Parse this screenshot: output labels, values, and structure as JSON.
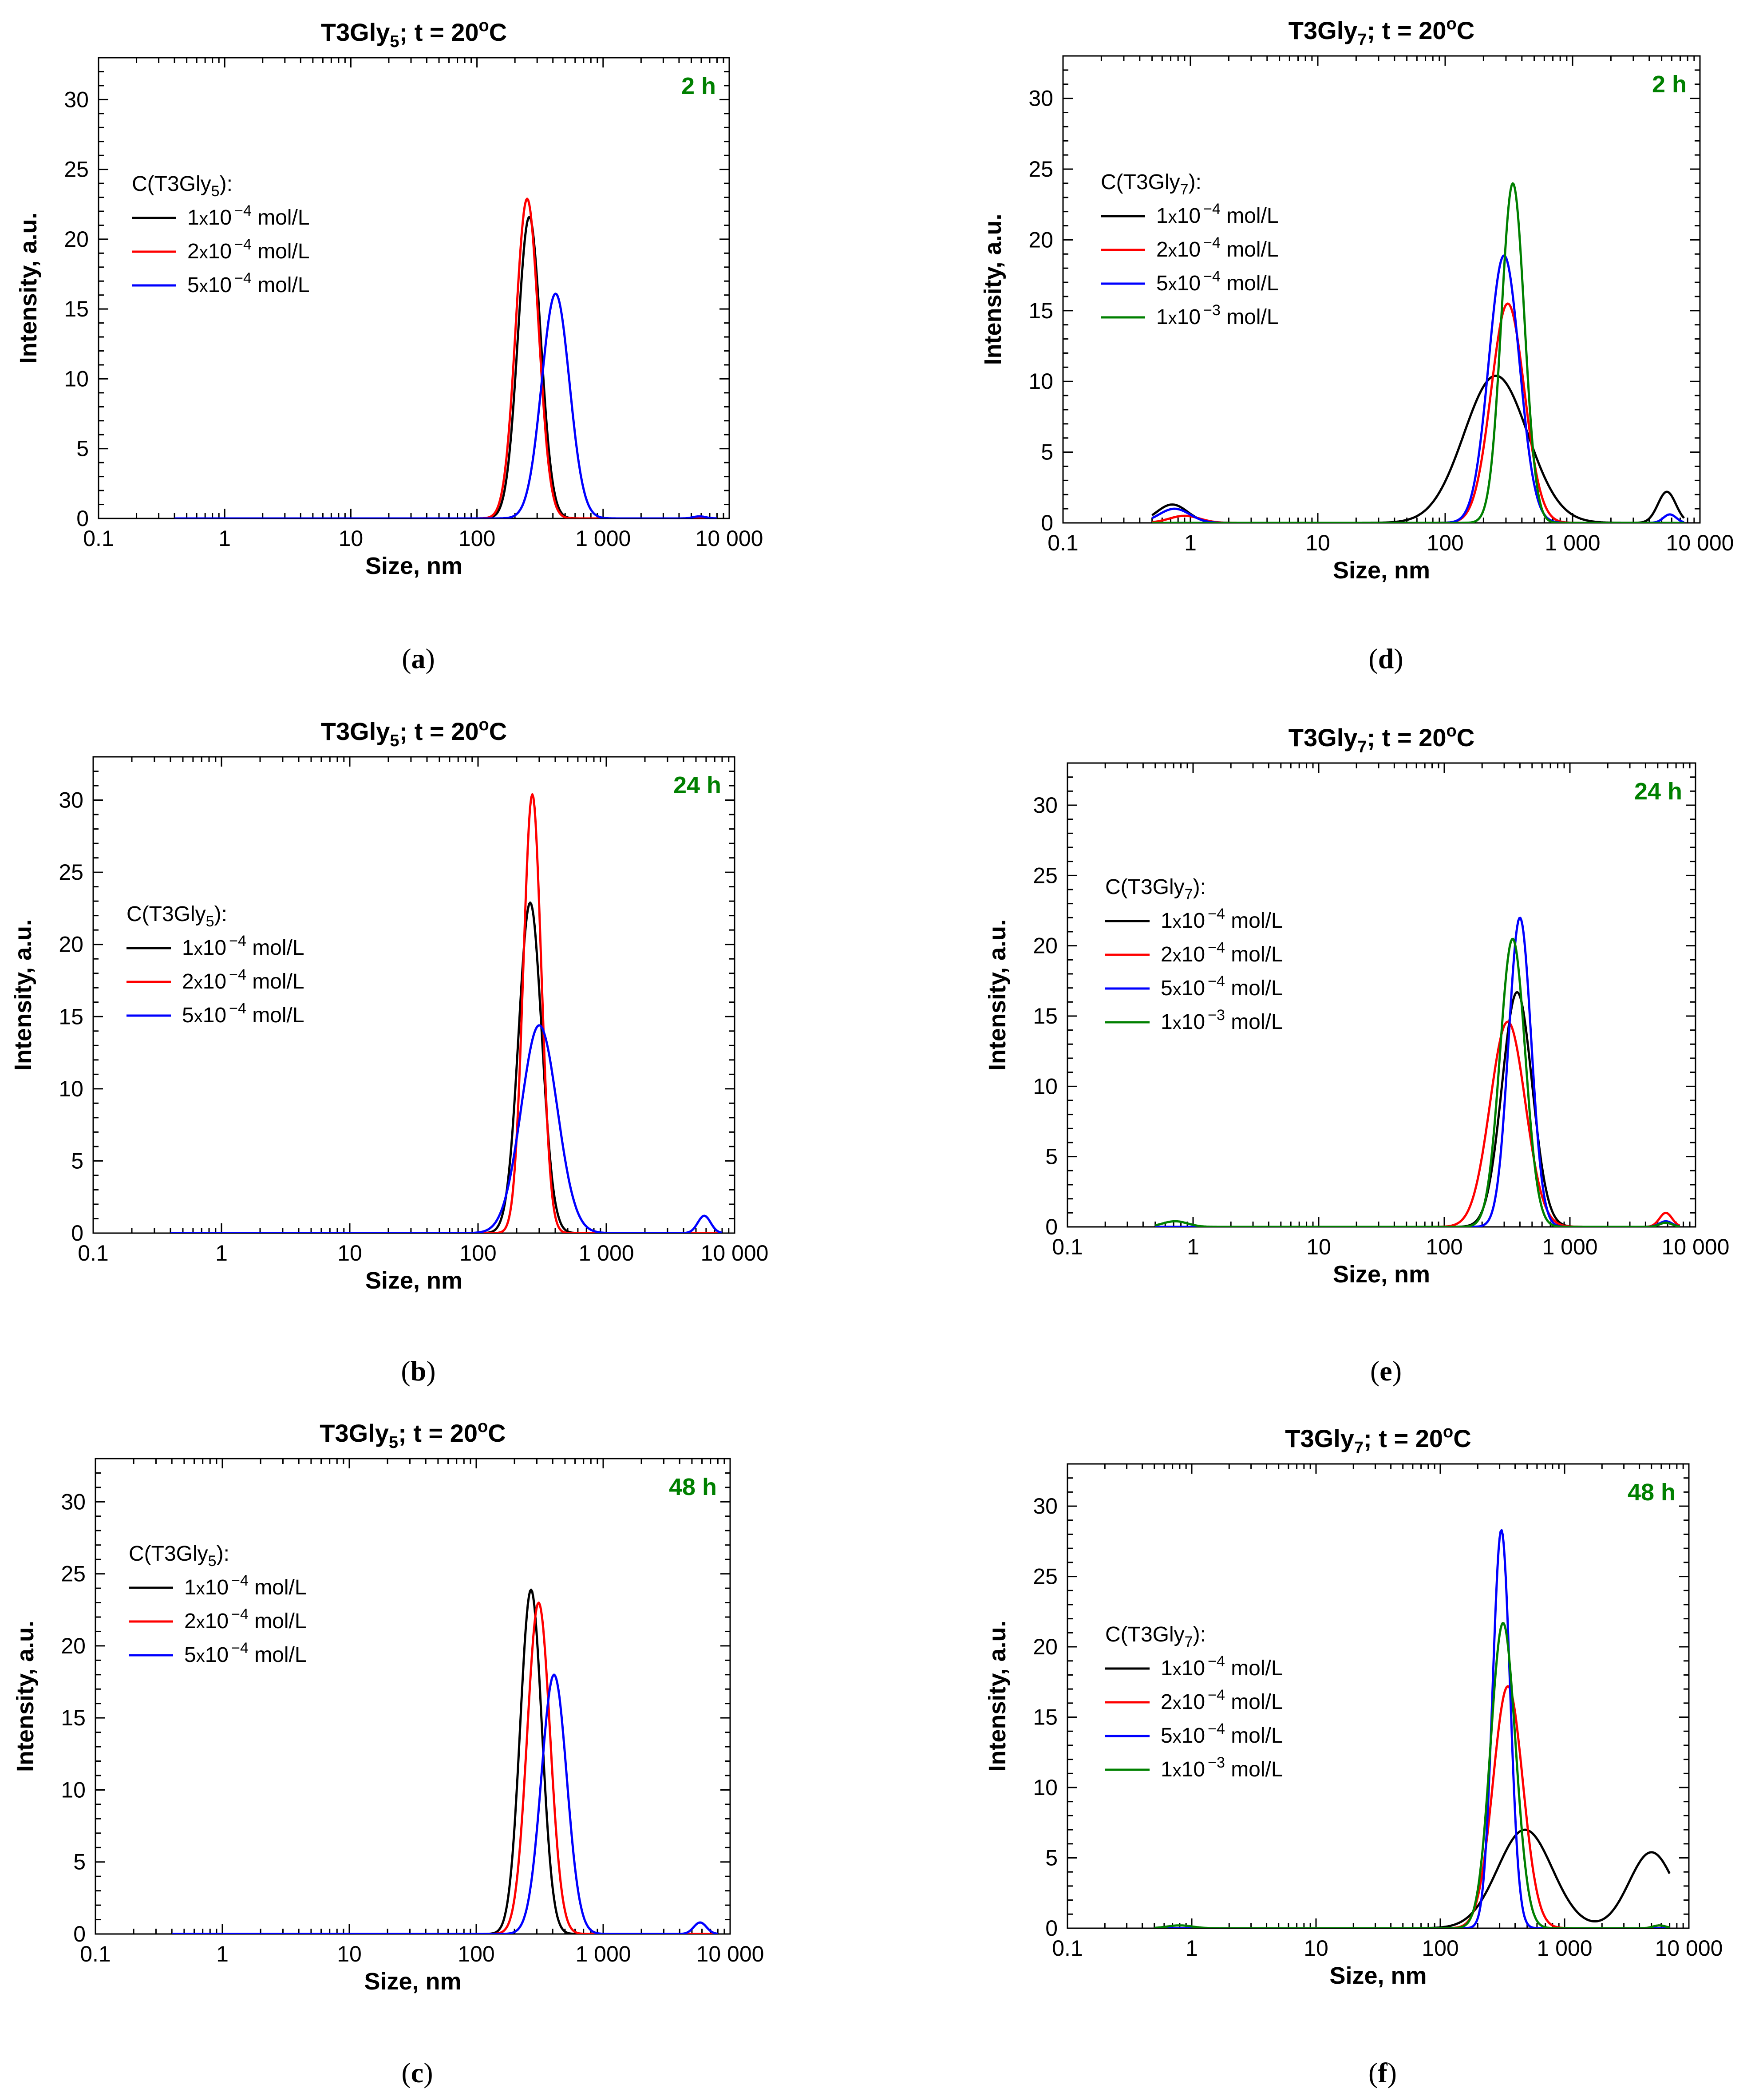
{
  "chart_data": [
    {
      "panel": "a",
      "caption": "(a)",
      "type": "line",
      "title_main": "T3Gly",
      "title_sub": "5",
      "title_rest": "; t = 20",
      "title_deg": "o",
      "title_unit": "C",
      "time_label": "2 h",
      "xlabel": "Size, nm",
      "ylabel": "Intensity, a.u.",
      "xscale": "log",
      "xlim": [
        0.1,
        10000
      ],
      "ylim": [
        0,
        33
      ],
      "xticks": [
        {
          "v": 0.1,
          "label": "0.1"
        },
        {
          "v": 1,
          "label": "1"
        },
        {
          "v": 10,
          "label": "10"
        },
        {
          "v": 100,
          "label": "100"
        },
        {
          "v": 1000,
          "label": "1 000"
        },
        {
          "v": 10000,
          "label": "10 000"
        }
      ],
      "yticks": [
        {
          "v": 0,
          "label": "0"
        },
        {
          "v": 5,
          "label": "5"
        },
        {
          "v": 10,
          "label": "10"
        },
        {
          "v": 15,
          "label": "15"
        },
        {
          "v": 20,
          "label": "20"
        },
        {
          "v": 25,
          "label": "25"
        },
        {
          "v": 30,
          "label": "30"
        }
      ],
      "legend_title": {
        "pre": "C(T3Gly",
        "sub": "5",
        "post": "):"
      },
      "series": [
        {
          "name": "1x10-4 mol/L",
          "color": "#000000",
          "xstart": 0.4,
          "xend": 8000,
          "peaks": [
            {
              "c": 260,
              "a": 21.6,
              "w": 0.09
            }
          ]
        },
        {
          "name": "2x10-4 mol/L",
          "color": "#ff0000",
          "xstart": 0.4,
          "xend": 8000,
          "peaks": [
            {
              "c": 250,
              "a": 22.9,
              "w": 0.09
            }
          ]
        },
        {
          "name": "5x10-4 mol/L",
          "color": "#0000ff",
          "xstart": 0.4,
          "xend": 8000,
          "peaks": [
            {
              "c": 420,
              "a": 16.1,
              "w": 0.11
            },
            {
              "c": 5800,
              "a": 0.15,
              "w": 0.05
            }
          ]
        }
      ]
    },
    {
      "panel": "b",
      "caption": "(b)",
      "type": "line",
      "title_main": "T3Gly",
      "title_sub": "5",
      "title_rest": "; t = 20",
      "title_deg": "o",
      "title_unit": "C",
      "time_label": "24 h",
      "xlabel": "Size, nm",
      "ylabel": "Intensity, a.u.",
      "xscale": "log",
      "xlim": [
        0.1,
        10000
      ],
      "ylim": [
        0,
        33
      ],
      "xticks": [
        {
          "v": 0.1,
          "label": "0.1"
        },
        {
          "v": 1,
          "label": "1"
        },
        {
          "v": 10,
          "label": "10"
        },
        {
          "v": 100,
          "label": "100"
        },
        {
          "v": 1000,
          "label": "1 000"
        },
        {
          "v": 10000,
          "label": "10 000"
        }
      ],
      "yticks": [
        {
          "v": 0,
          "label": "0"
        },
        {
          "v": 5,
          "label": "5"
        },
        {
          "v": 10,
          "label": "10"
        },
        {
          "v": 15,
          "label": "15"
        },
        {
          "v": 20,
          "label": "20"
        },
        {
          "v": 25,
          "label": "25"
        },
        {
          "v": 30,
          "label": "30"
        }
      ],
      "legend_title": {
        "pre": "C(T3Gly",
        "sub": "5",
        "post": "):"
      },
      "series": [
        {
          "name": "1x10-4 mol/L",
          "color": "#000000",
          "xstart": 0.4,
          "xend": 8000,
          "peaks": [
            {
              "c": 255,
              "a": 22.9,
              "w": 0.09
            }
          ]
        },
        {
          "name": "2x10-4 mol/L",
          "color": "#ff0000",
          "xstart": 0.4,
          "xend": 8000,
          "peaks": [
            {
              "c": 265,
              "a": 30.4,
              "w": 0.07
            }
          ]
        },
        {
          "name": "5x10-4 mol/L",
          "color": "#0000ff",
          "xstart": 0.4,
          "xend": 8000,
          "peaks": [
            {
              "c": 300,
              "a": 14.4,
              "w": 0.14
            },
            {
              "c": 5800,
              "a": 1.2,
              "w": 0.05
            }
          ]
        }
      ]
    },
    {
      "panel": "c",
      "caption": "(c)",
      "type": "line",
      "title_main": "T3Gly",
      "title_sub": "5",
      "title_rest": "; t = 20",
      "title_deg": "o",
      "title_unit": "C",
      "time_label": "48 h",
      "xlabel": "Size, nm",
      "ylabel": "Intensity, a.u.",
      "xscale": "log",
      "xlim": [
        0.1,
        10000
      ],
      "ylim": [
        0,
        33
      ],
      "xticks": [
        {
          "v": 0.1,
          "label": "0.1"
        },
        {
          "v": 1,
          "label": "1"
        },
        {
          "v": 10,
          "label": "10"
        },
        {
          "v": 100,
          "label": "100"
        },
        {
          "v": 1000,
          "label": "1 000"
        },
        {
          "v": 10000,
          "label": "10 000"
        }
      ],
      "yticks": [
        {
          "v": 0,
          "label": "0"
        },
        {
          "v": 5,
          "label": "5"
        },
        {
          "v": 10,
          "label": "10"
        },
        {
          "v": 15,
          "label": "15"
        },
        {
          "v": 20,
          "label": "20"
        },
        {
          "v": 25,
          "label": "25"
        },
        {
          "v": 30,
          "label": "30"
        }
      ],
      "legend_title": {
        "pre": "C(T3Gly",
        "sub": "5",
        "post": "):"
      },
      "series": [
        {
          "name": "1x10-4 mol/L",
          "color": "#000000",
          "xstart": 0.4,
          "xend": 8000,
          "peaks": [
            {
              "c": 270,
              "a": 23.9,
              "w": 0.085
            }
          ]
        },
        {
          "name": "2x10-4 mol/L",
          "color": "#ff0000",
          "xstart": 0.4,
          "xend": 8000,
          "peaks": [
            {
              "c": 310,
              "a": 23.0,
              "w": 0.09
            }
          ]
        },
        {
          "name": "5x10-4 mol/L",
          "color": "#0000ff",
          "xstart": 0.4,
          "xend": 8000,
          "peaks": [
            {
              "c": 410,
              "a": 18.0,
              "w": 0.1
            },
            {
              "c": 5800,
              "a": 0.8,
              "w": 0.05
            }
          ]
        }
      ]
    },
    {
      "panel": "d",
      "caption": "(d)",
      "type": "line",
      "title_main": "T3Gly",
      "title_sub": "7",
      "title_rest": "; t = 20",
      "title_deg": "o",
      "title_unit": "C",
      "time_label": "2 h",
      "xlabel": "Size, nm",
      "ylabel": "Intensity, a.u.",
      "xscale": "log",
      "xlim": [
        0.1,
        10000
      ],
      "ylim": [
        0,
        33
      ],
      "xticks": [
        {
          "v": 0.1,
          "label": "0.1"
        },
        {
          "v": 1,
          "label": "1"
        },
        {
          "v": 10,
          "label": "10"
        },
        {
          "v": 100,
          "label": "100"
        },
        {
          "v": 1000,
          "label": "1 000"
        },
        {
          "v": 10000,
          "label": "10 000"
        }
      ],
      "yticks": [
        {
          "v": 0,
          "label": "0"
        },
        {
          "v": 5,
          "label": "5"
        },
        {
          "v": 10,
          "label": "10"
        },
        {
          "v": 15,
          "label": "15"
        },
        {
          "v": 20,
          "label": "20"
        },
        {
          "v": 25,
          "label": "25"
        },
        {
          "v": 30,
          "label": "30"
        }
      ],
      "legend_title": {
        "pre": "C(T3Gly",
        "sub": "7",
        "post": "):"
      },
      "series": [
        {
          "name": "1x10-4 mol/L",
          "color": "#000000",
          "xstart": 0.5,
          "xend": 7500,
          "peaks": [
            {
              "c": 0.72,
              "a": 1.3,
              "w": 0.12
            },
            {
              "c": 250,
              "a": 10.4,
              "w": 0.25
            },
            {
              "c": 5500,
              "a": 2.2,
              "w": 0.07
            }
          ]
        },
        {
          "name": "2x10-4 mol/L",
          "color": "#ff0000",
          "xstart": 0.5,
          "xend": 7500,
          "peaks": [
            {
              "c": 0.9,
              "a": 0.5,
              "w": 0.12
            },
            {
              "c": 310,
              "a": 15.5,
              "w": 0.13
            }
          ]
        },
        {
          "name": "5x10-4 mol/L",
          "color": "#0000ff",
          "xstart": 0.5,
          "xend": 7500,
          "peaks": [
            {
              "c": 0.75,
              "a": 1.0,
              "w": 0.12
            },
            {
              "c": 290,
              "a": 18.9,
              "w": 0.12
            },
            {
              "c": 5800,
              "a": 0.6,
              "w": 0.05
            }
          ]
        },
        {
          "name": "1x10-3 mol/L",
          "color": "#008000",
          "xstart": 0.5,
          "xend": 7500,
          "peaks": [
            {
              "c": 340,
              "a": 24.0,
              "w": 0.09
            }
          ]
        }
      ]
    },
    {
      "panel": "e",
      "caption": "(e)",
      "type": "line",
      "title_main": "T3Gly",
      "title_sub": "7",
      "title_rest": "; t = 20",
      "title_deg": "o",
      "title_unit": "C",
      "time_label": "24 h",
      "xlabel": "Size, nm",
      "ylabel": "Intensity, a.u.",
      "xscale": "log",
      "xlim": [
        0.1,
        10000
      ],
      "ylim": [
        0,
        33
      ],
      "xticks": [
        {
          "v": 0.1,
          "label": "0.1"
        },
        {
          "v": 1,
          "label": "1"
        },
        {
          "v": 10,
          "label": "10"
        },
        {
          "v": 100,
          "label": "100"
        },
        {
          "v": 1000,
          "label": "1 000"
        },
        {
          "v": 10000,
          "label": "10 000"
        }
      ],
      "yticks": [
        {
          "v": 0,
          "label": "0"
        },
        {
          "v": 5,
          "label": "5"
        },
        {
          "v": 10,
          "label": "10"
        },
        {
          "v": 15,
          "label": "15"
        },
        {
          "v": 20,
          "label": "20"
        },
        {
          "v": 25,
          "label": "25"
        },
        {
          "v": 30,
          "label": "30"
        }
      ],
      "legend_title": {
        "pre": "C(T3Gly",
        "sub": "7",
        "post": "):"
      },
      "series": [
        {
          "name": "1x10-4 mol/L",
          "color": "#000000",
          "xstart": 0.5,
          "xend": 7500,
          "peaks": [
            {
              "c": 380,
              "a": 16.7,
              "w": 0.12
            },
            {
              "c": 5800,
              "a": 0.3,
              "w": 0.05
            }
          ]
        },
        {
          "name": "2x10-4 mol/L",
          "color": "#ff0000",
          "xstart": 0.5,
          "xend": 7500,
          "peaks": [
            {
              "c": 320,
              "a": 14.6,
              "w": 0.14
            },
            {
              "c": 5800,
              "a": 1.0,
              "w": 0.05
            }
          ]
        },
        {
          "name": "5x10-4 mol/L",
          "color": "#0000ff",
          "xstart": 0.5,
          "xend": 7500,
          "peaks": [
            {
              "c": 400,
              "a": 22.0,
              "w": 0.09
            },
            {
              "c": 5800,
              "a": 0.4,
              "w": 0.05
            }
          ]
        },
        {
          "name": "1x10-3 mol/L",
          "color": "#008000",
          "xstart": 0.5,
          "xend": 7500,
          "peaks": [
            {
              "c": 0.72,
              "a": 0.4,
              "w": 0.1
            },
            {
              "c": 350,
              "a": 20.5,
              "w": 0.1
            },
            {
              "c": 5800,
              "a": 0.3,
              "w": 0.05
            }
          ]
        }
      ]
    },
    {
      "panel": "f",
      "caption": "(f)",
      "type": "line",
      "title_main": "T3Gly",
      "title_sub": "7",
      "title_rest": "; t = 20",
      "title_deg": "o",
      "title_unit": "C",
      "time_label": "48 h",
      "xlabel": "Size, nm",
      "ylabel": "Intensity, a.u.",
      "xscale": "log",
      "xlim": [
        0.1,
        10000
      ],
      "ylim": [
        0,
        33
      ],
      "xticks": [
        {
          "v": 0.1,
          "label": "0.1"
        },
        {
          "v": 1,
          "label": "1"
        },
        {
          "v": 10,
          "label": "10"
        },
        {
          "v": 100,
          "label": "100"
        },
        {
          "v": 1000,
          "label": "1 000"
        },
        {
          "v": 10000,
          "label": "10 000"
        }
      ],
      "yticks": [
        {
          "v": 0,
          "label": "0"
        },
        {
          "v": 5,
          "label": "5"
        },
        {
          "v": 10,
          "label": "10"
        },
        {
          "v": 15,
          "label": "15"
        },
        {
          "v": 20,
          "label": "20"
        },
        {
          "v": 25,
          "label": "25"
        },
        {
          "v": 30,
          "label": "30"
        }
      ],
      "legend_title": {
        "pre": "C(T3Gly",
        "sub": "7",
        "post": "):"
      },
      "series": [
        {
          "name": "1x10-4 mol/L",
          "color": "#000000",
          "xstart": 0.5,
          "xend": 7000,
          "peaks": [
            {
              "c": 480,
              "a": 7.0,
              "w": 0.22
            },
            {
              "c": 5000,
              "a": 5.4,
              "w": 0.18
            }
          ]
        },
        {
          "name": "2x10-4 mol/L",
          "color": "#ff0000",
          "xstart": 0.5,
          "xend": 7000,
          "peaks": [
            {
              "c": 350,
              "a": 17.2,
              "w": 0.12
            },
            {
              "c": 5800,
              "a": 0.2,
              "w": 0.05
            }
          ]
        },
        {
          "name": "5x10-4 mol/L",
          "color": "#0000ff",
          "xstart": 0.5,
          "xend": 7000,
          "peaks": [
            {
              "c": 310,
              "a": 28.3,
              "w": 0.07
            }
          ]
        },
        {
          "name": "1x10-3 mol/L",
          "color": "#008000",
          "xstart": 0.5,
          "xend": 7000,
          "peaks": [
            {
              "c": 0.8,
              "a": 0.2,
              "w": 0.1
            },
            {
              "c": 320,
              "a": 21.7,
              "w": 0.1
            },
            {
              "c": 5800,
              "a": 0.2,
              "w": 0.05
            }
          ]
        }
      ]
    }
  ]
}
